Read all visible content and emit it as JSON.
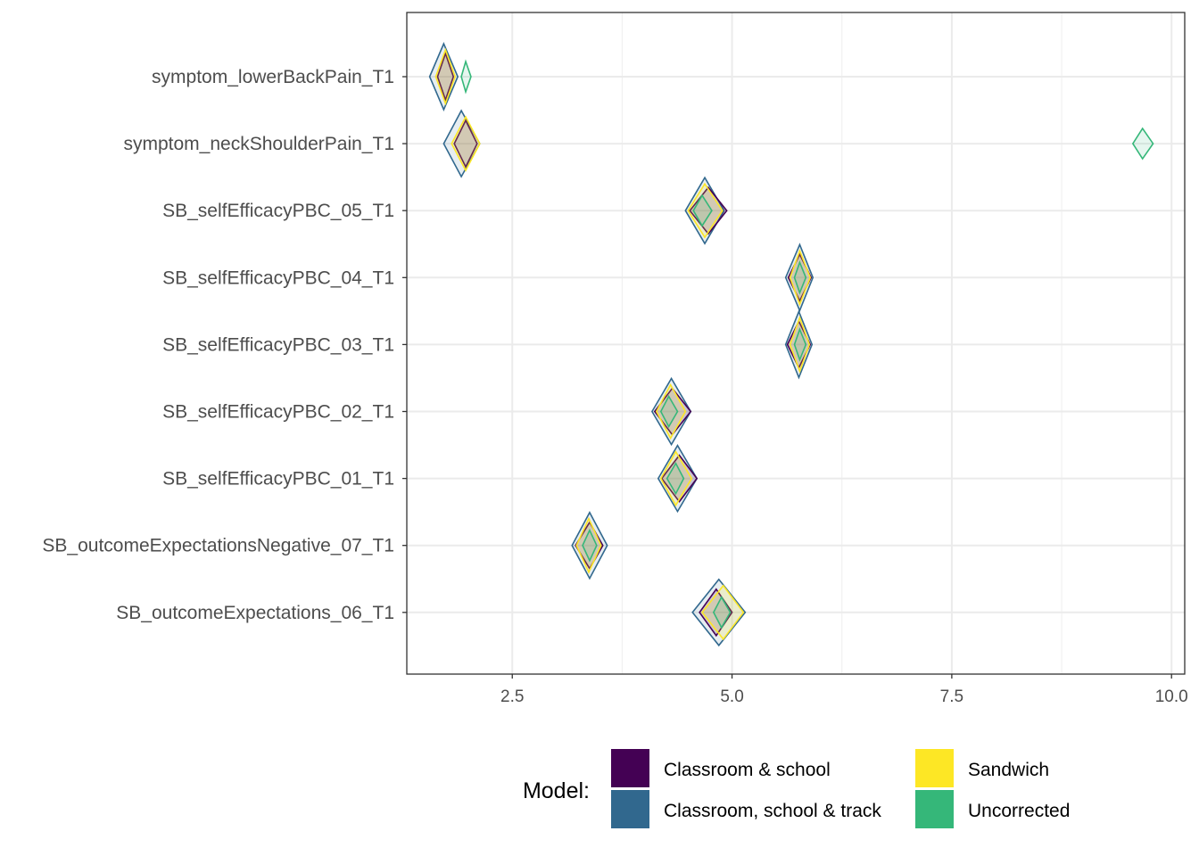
{
  "chart_data": {
    "type": "diamond-interval",
    "title": "",
    "xlabel": "",
    "ylabel": "",
    "xlim": [
      1.3,
      10.15
    ],
    "x_ticks": [
      2.5,
      5.0,
      7.5,
      10.0
    ],
    "x_tick_labels": [
      "2.5",
      "5.0",
      "7.5",
      "10.0"
    ],
    "grid": true,
    "legend": {
      "title": "Model:",
      "position": "bottom"
    },
    "categories": [
      "symptom_lowerBackPain_T1",
      "symptom_neckShoulderPain_T1",
      "SB_selfEfficacyPBC_05_T1",
      "SB_selfEfficacyPBC_04_T1",
      "SB_selfEfficacyPBC_03_T1",
      "SB_selfEfficacyPBC_02_T1",
      "SB_selfEfficacyPBC_01_T1",
      "SB_outcomeExpectationsNegative_07_T1",
      "SB_outcomeExpectations_06_T1"
    ],
    "series": [
      {
        "name": "Classroom & school",
        "color": "#440154",
        "points": [
          {
            "lo": 1.65,
            "est": 1.74,
            "hi": 1.83
          },
          {
            "lo": 1.84,
            "est": 1.97,
            "hi": 2.1
          },
          {
            "lo": 4.52,
            "est": 4.73,
            "hi": 4.94
          },
          {
            "lo": 5.64,
            "est": 5.77,
            "hi": 5.9
          },
          {
            "lo": 5.63,
            "est": 5.76,
            "hi": 5.89
          },
          {
            "lo": 4.12,
            "est": 4.32,
            "hi": 4.53
          },
          {
            "lo": 4.2,
            "est": 4.4,
            "hi": 4.6
          },
          {
            "lo": 3.22,
            "est": 3.38,
            "hi": 3.53
          },
          {
            "lo": 4.63,
            "est": 4.82,
            "hi": 5.0
          }
        ]
      },
      {
        "name": "Classroom, school & track",
        "color": "#31688E",
        "points": [
          {
            "lo": 1.56,
            "est": 1.72,
            "hi": 1.88
          },
          {
            "lo": 1.72,
            "est": 1.92,
            "hi": 2.13
          },
          {
            "lo": 4.47,
            "est": 4.69,
            "hi": 4.91
          },
          {
            "lo": 5.61,
            "est": 5.77,
            "hi": 5.92
          },
          {
            "lo": 5.61,
            "est": 5.76,
            "hi": 5.91
          },
          {
            "lo": 4.09,
            "est": 4.31,
            "hi": 4.53
          },
          {
            "lo": 4.16,
            "est": 4.38,
            "hi": 4.6
          },
          {
            "lo": 3.18,
            "est": 3.38,
            "hi": 3.58
          },
          {
            "lo": 4.55,
            "est": 4.85,
            "hi": 5.15
          }
        ]
      },
      {
        "name": "Sandwich",
        "color": "#FDE725",
        "points": [
          {
            "lo": 1.63,
            "est": 1.74,
            "hi": 1.85
          },
          {
            "lo": 1.81,
            "est": 1.97,
            "hi": 2.13
          },
          {
            "lo": 4.5,
            "est": 4.69,
            "hi": 4.89
          },
          {
            "lo": 5.66,
            "est": 5.77,
            "hi": 5.89
          },
          {
            "lo": 5.66,
            "est": 5.77,
            "hi": 5.88
          },
          {
            "lo": 4.14,
            "est": 4.3,
            "hi": 4.47
          },
          {
            "lo": 4.19,
            "est": 4.36,
            "hi": 4.54
          },
          {
            "lo": 3.23,
            "est": 3.37,
            "hi": 3.51
          },
          {
            "lo": 4.66,
            "est": 4.9,
            "hi": 5.13
          }
        ]
      },
      {
        "name": "Uncorrected",
        "color": "#35B779",
        "points": [
          {
            "lo": 1.92,
            "est": 1.97,
            "hi": 2.03
          },
          {
            "lo": 9.56,
            "est": 9.67,
            "hi": 9.79
          },
          {
            "lo": 4.56,
            "est": 4.66,
            "hi": 4.77
          },
          {
            "lo": 5.71,
            "est": 5.77,
            "hi": 5.84
          },
          {
            "lo": 5.71,
            "est": 5.77,
            "hi": 5.84
          },
          {
            "lo": 4.19,
            "est": 4.28,
            "hi": 4.38
          },
          {
            "lo": 4.26,
            "est": 4.36,
            "hi": 4.45
          },
          {
            "lo": 3.3,
            "est": 3.38,
            "hi": 3.46
          },
          {
            "lo": 4.79,
            "est": 4.88,
            "hi": 4.98
          }
        ]
      }
    ]
  }
}
